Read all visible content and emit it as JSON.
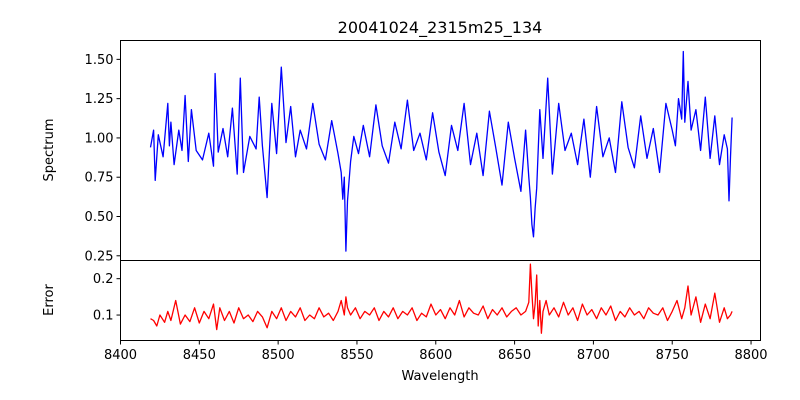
{
  "chart_data": {
    "type": "line",
    "title": "20041024_2315m25_134",
    "xlabel": "Wavelength",
    "xlim": [
      8400,
      8806
    ],
    "xticks": [
      8400,
      8450,
      8500,
      8550,
      8600,
      8650,
      8700,
      8750,
      8800
    ],
    "grid": false,
    "panels": [
      {
        "id": "spectrum",
        "ylabel": "Spectrum",
        "ylim": [
          0.22,
          1.62
        ],
        "yticks": [
          0.25,
          0.5,
          0.75,
          1.0,
          1.25,
          1.5
        ],
        "ytick_labels": [
          "0.25",
          "0.50",
          "0.75",
          "1.00",
          "1.25",
          "1.50"
        ],
        "series": [
          {
            "color": "#0000ff",
            "x": [
              8419,
              8421,
              8422,
              8424,
              8427,
              8430,
              8431,
              8432,
              8434,
              8437,
              8439,
              8441,
              8443,
              8445,
              8448,
              8452,
              8456,
              8459,
              8460,
              8462,
              8465,
              8468,
              8471,
              8474,
              8476,
              8478,
              8482,
              8486,
              8488,
              8490,
              8493,
              8496,
              8499,
              8502,
              8505,
              8508,
              8511,
              8514,
              8518,
              8522,
              8526,
              8530,
              8534,
              8538,
              8540,
              8541,
              8542,
              8543,
              8544,
              8546,
              8548,
              8551,
              8554,
              8558,
              8562,
              8566,
              8570,
              8574,
              8578,
              8582,
              8586,
              8590,
              8594,
              8598,
              8602,
              8606,
              8610,
              8614,
              8618,
              8622,
              8626,
              8630,
              8634,
              8638,
              8642,
              8646,
              8650,
              8654,
              8657,
              8659,
              8660,
              8661,
              8662,
              8663,
              8664,
              8666,
              8668,
              8671,
              8674,
              8678,
              8682,
              8686,
              8690,
              8694,
              8698,
              8702,
              8706,
              8710,
              8714,
              8718,
              8722,
              8726,
              8730,
              8734,
              8738,
              8742,
              8746,
              8750,
              8752,
              8754,
              8756,
              8757,
              8758,
              8760,
              8762,
              8765,
              8768,
              8771,
              8774,
              8777,
              8780,
              8783,
              8785,
              8786,
              8787,
              8788
            ],
            "y": [
              0.94,
              1.05,
              0.73,
              1.02,
              0.88,
              1.22,
              0.95,
              1.1,
              0.83,
              1.05,
              0.92,
              1.27,
              0.85,
              1.18,
              0.92,
              0.86,
              1.03,
              0.82,
              1.41,
              0.91,
              1.06,
              0.88,
              1.19,
              0.77,
              1.38,
              0.78,
              1.01,
              0.93,
              1.26,
              0.95,
              0.62,
              1.22,
              0.9,
              1.45,
              0.97,
              1.2,
              0.88,
              1.05,
              0.93,
              1.22,
              0.96,
              0.86,
              1.11,
              0.9,
              0.78,
              0.61,
              0.75,
              0.28,
              0.6,
              0.85,
              1.01,
              0.9,
              1.08,
              0.88,
              1.21,
              0.95,
              0.84,
              1.1,
              0.93,
              1.24,
              0.92,
              1.03,
              0.86,
              1.16,
              0.91,
              0.76,
              1.08,
              0.92,
              1.22,
              0.83,
              1.03,
              0.76,
              1.17,
              0.94,
              0.7,
              1.1,
              0.87,
              0.66,
              1.05,
              0.75,
              0.62,
              0.45,
              0.37,
              0.55,
              0.68,
              1.18,
              0.87,
              1.38,
              0.77,
              1.22,
              0.92,
              1.03,
              0.83,
              1.12,
              0.75,
              1.2,
              0.88,
              1.0,
              0.78,
              1.23,
              0.94,
              0.81,
              1.14,
              0.87,
              1.06,
              0.78,
              1.22,
              1.05,
              0.95,
              1.25,
              1.12,
              1.55,
              1.1,
              1.36,
              1.05,
              1.18,
              0.92,
              1.26,
              0.87,
              1.14,
              0.83,
              1.02,
              0.93,
              0.6,
              0.88,
              1.13
            ]
          }
        ]
      },
      {
        "id": "error",
        "ylabel": "Error",
        "ylim": [
          0.03,
          0.25
        ],
        "yticks": [
          0.1,
          0.2
        ],
        "ytick_labels": [
          "0.1",
          "0.2"
        ],
        "series": [
          {
            "color": "#ff0000",
            "x": [
              8419,
              8421,
              8423,
              8425,
              8428,
              8430,
              8432,
              8435,
              8438,
              8441,
              8444,
              8447,
              8450,
              8453,
              8456,
              8459,
              8461,
              8463,
              8466,
              8469,
              8472,
              8475,
              8478,
              8481,
              8484,
              8487,
              8490,
              8493,
              8496,
              8499,
              8502,
              8505,
              8508,
              8511,
              8514,
              8517,
              8520,
              8523,
              8526,
              8529,
              8532,
              8535,
              8538,
              8540,
              8542,
              8543,
              8544,
              8546,
              8549,
              8552,
              8555,
              8558,
              8561,
              8564,
              8567,
              8570,
              8573,
              8576,
              8579,
              8582,
              8585,
              8588,
              8591,
              8594,
              8597,
              8600,
              8603,
              8606,
              8609,
              8612,
              8615,
              8618,
              8621,
              8624,
              8627,
              8630,
              8633,
              8636,
              8639,
              8642,
              8645,
              8648,
              8651,
              8654,
              8657,
              8659,
              8660,
              8661,
              8662,
              8663,
              8664,
              8665,
              8666,
              8667,
              8668,
              8670,
              8672,
              8675,
              8678,
              8681,
              8684,
              8687,
              8690,
              8693,
              8696,
              8699,
              8702,
              8705,
              8708,
              8711,
              8714,
              8717,
              8720,
              8723,
              8726,
              8729,
              8732,
              8735,
              8738,
              8741,
              8744,
              8747,
              8750,
              8753,
              8756,
              8758,
              8760,
              8762,
              8765,
              8768,
              8771,
              8774,
              8777,
              8780,
              8783,
              8785,
              8787,
              8788
            ],
            "y": [
              0.09,
              0.085,
              0.07,
              0.1,
              0.08,
              0.11,
              0.085,
              0.14,
              0.075,
              0.1,
              0.082,
              0.12,
              0.078,
              0.11,
              0.09,
              0.13,
              0.06,
              0.12,
              0.085,
              0.11,
              0.078,
              0.12,
              0.09,
              0.1,
              0.082,
              0.11,
              0.095,
              0.065,
              0.11,
              0.09,
              0.12,
              0.085,
              0.11,
              0.095,
              0.12,
              0.085,
              0.1,
              0.09,
              0.12,
              0.095,
              0.105,
              0.085,
              0.11,
              0.14,
              0.1,
              0.15,
              0.12,
              0.1,
              0.12,
              0.09,
              0.11,
              0.1,
              0.12,
              0.085,
              0.11,
              0.095,
              0.12,
              0.09,
              0.11,
              0.1,
              0.12,
              0.085,
              0.105,
              0.095,
              0.13,
              0.1,
              0.115,
              0.09,
              0.12,
              0.1,
              0.14,
              0.095,
              0.12,
              0.105,
              0.1,
              0.125,
              0.09,
              0.115,
              0.1,
              0.12,
              0.095,
              0.11,
              0.12,
              0.1,
              0.11,
              0.135,
              0.24,
              0.16,
              0.09,
              0.13,
              0.21,
              0.07,
              0.14,
              0.05,
              0.11,
              0.14,
              0.1,
              0.12,
              0.095,
              0.135,
              0.1,
              0.12,
              0.085,
              0.13,
              0.1,
              0.115,
              0.09,
              0.12,
              0.1,
              0.125,
              0.085,
              0.11,
              0.095,
              0.12,
              0.1,
              0.11,
              0.09,
              0.12,
              0.105,
              0.1,
              0.12,
              0.085,
              0.11,
              0.14,
              0.09,
              0.12,
              0.18,
              0.1,
              0.15,
              0.08,
              0.13,
              0.09,
              0.16,
              0.08,
              0.12,
              0.09,
              0.1,
              0.11
            ]
          }
        ]
      }
    ]
  }
}
